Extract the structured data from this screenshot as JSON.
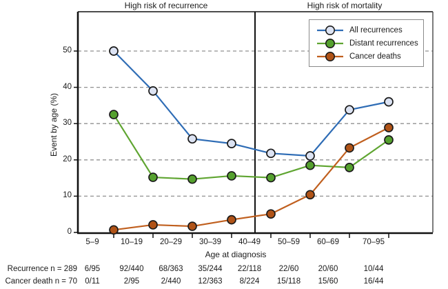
{
  "figure": {
    "left_region_title": "High risk of recurrence",
    "right_region_title": "High risk of mortality"
  },
  "y_axis": {
    "title": "Event by age (%)",
    "ticks": [
      "0",
      "10",
      "20",
      "30",
      "40",
      "50"
    ]
  },
  "x_axis": {
    "title": "Age at diagnosis"
  },
  "legend": {
    "items": [
      {
        "label": "All recurrences",
        "line_color": "#2e6cb5",
        "fill_color": "#dce3f3"
      },
      {
        "label": "Distant recurrences",
        "line_color": "#5fa531",
        "fill_color": "#55a12e"
      },
      {
        "label": "Cancer deaths",
        "line_color": "#c05f1e",
        "fill_color": "#b05317"
      }
    ]
  },
  "chart_data": {
    "type": "line",
    "title": "",
    "xlabel": "Age at diagnosis",
    "ylabel": "Event by age (%)",
    "categories": [
      "5–9",
      "10–19",
      "20–29",
      "30–39",
      "40–49",
      "50–59",
      "60–69",
      "70–95"
    ],
    "series": [
      {
        "name": "All recurrences",
        "color": "#2e6cb5",
        "marker_fill": "#dce3f3",
        "values": [
          50,
          39,
          25.8,
          24.5,
          21.8,
          21.1,
          33.8,
          36
        ]
      },
      {
        "name": "Distant recurrences",
        "color": "#5fa531",
        "marker_fill": "#55a12e",
        "values": [
          32.5,
          15.2,
          14.7,
          15.6,
          15.1,
          18.5,
          17.9,
          25.5
        ]
      },
      {
        "name": "Cancer deaths",
        "color": "#c05f1e",
        "marker_fill": "#b05317",
        "values": [
          0.7,
          2.1,
          1.7,
          3.5,
          5.1,
          10.4,
          23.3,
          28.9
        ]
      }
    ],
    "ylim": [
      0,
      61
    ],
    "grid": "horizontal dashed at 10,20,30,40,50",
    "legend_position": "top-right",
    "divider_between": [
      "30–39",
      "40–49"
    ],
    "annotations": {
      "left_of_divider": "High risk of recurrence",
      "right_of_divider": "High risk of mortality"
    }
  },
  "table": {
    "rows": [
      {
        "label": "Recurrence n = 289",
        "values": [
          "6/95",
          "92/440",
          "68/363",
          "35/244",
          "22/118",
          "22/60",
          "20/60",
          "10/44"
        ]
      },
      {
        "label": "Cancer death n = 70",
        "values": [
          "0/11",
          "2/95",
          "2/440",
          "12/363",
          "8/224",
          "15/118",
          "15/60",
          "16/44"
        ]
      }
    ]
  }
}
